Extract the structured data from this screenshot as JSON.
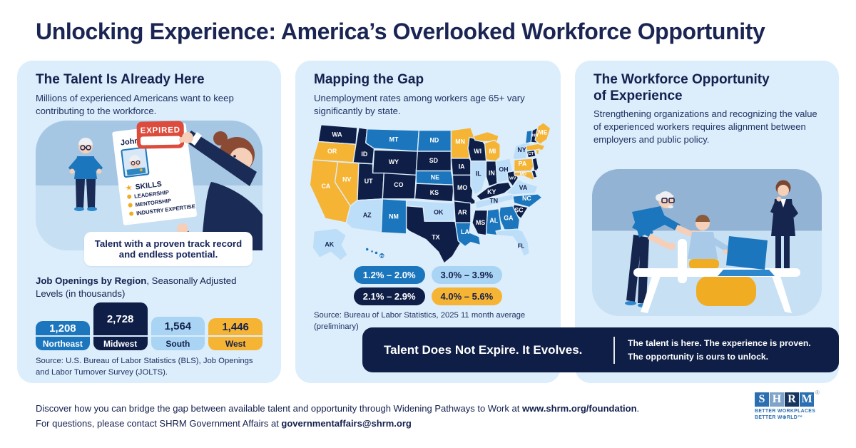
{
  "page": {
    "title": "Unlocking Experience: America’s Overlooked Workforce Opportunity"
  },
  "panels": {
    "talent": {
      "heading": "The Talent Is Already Here",
      "subheading": "Millions of experienced Americans want to keep contributing to the workforce.",
      "illustration": {
        "resume_name": "John",
        "stamp": "EXPIRED",
        "star": "★",
        "skills_title": "SKILLS",
        "skills": [
          "LEADERSHIP",
          "MENTORSHIP",
          "INDUSTRY EXPERTISE"
        ],
        "callout": "Talent with a proven track record and endless potential."
      },
      "chart_title_bold": "Job Openings by Region",
      "chart_title_rest": ", Seasonally Adjusted Levels (in thousands)",
      "source": "Source: U.S. Bureau of Labor Statistics (BLS), Job Openings and Labor Turnover Survey (JOLTS)."
    },
    "map": {
      "heading": "Mapping the Gap",
      "subheading": "Unemployment rates among workers age 65+ vary significantly by state.",
      "source": "Source: Bureau of Labor Statistics, 2025 11 month average (preliminary)"
    },
    "opportunity": {
      "heading_line1": "The Workforce Opportunity",
      "heading_line2": "of Experience",
      "subheading": "Strengthening organizations and recognizing the value of experienced workers requires alignment between employers and public policy."
    }
  },
  "banner": {
    "headline": "Talent Does Not Expire. It Evolves.",
    "sub_line1": "The talent is here. The experience is proven.",
    "sub_line2": "The opportunity is ours to unlock."
  },
  "footer": {
    "line1_prefix": "Discover how you can bridge the gap between available talent and opportunity through Widening Pathways to Work at ",
    "line1_bold": "www.shrm.org/foundation",
    "line1_suffix": ".",
    "line2_prefix": "For questions, please contact SHRM Government Affairs at ",
    "line2_bold": "governmentaffairs@shrm.org"
  },
  "logo": {
    "letters": [
      {
        "ch": "S",
        "bg": "#2B6FB0"
      },
      {
        "ch": "H",
        "bg": "#7FA3C9"
      },
      {
        "ch": "R",
        "bg": "#16365F"
      },
      {
        "ch": "M",
        "bg": "#2B6FB0"
      }
    ],
    "reg": "®",
    "tagline1": "BETTER WORKPLACES",
    "tagline2": "BETTER W⊕RLD™"
  },
  "colors": {
    "navy": "#0E1E46",
    "blue": "#1B76BD",
    "light_blue": "#A9D4F4",
    "pale_blue": "#BDDEF8",
    "orange": "#F6B434",
    "panel_bg": "#DCEDFB",
    "stamp_red": "#DC4B3C",
    "text_navy": "#14204E"
  },
  "chart_data": [
    {
      "type": "bar",
      "title": "Job Openings by Region, Seasonally Adjusted Levels (in thousands)",
      "categories": [
        "Northeast",
        "Midwest",
        "South",
        "West"
      ],
      "values": [
        1208,
        2728,
        1564,
        1446
      ],
      "value_labels": [
        "1,208",
        "2,728",
        "1,564",
        "1,446"
      ],
      "bar_colors": [
        "#1B76BD",
        "#0E1E46",
        "#A9D4F4",
        "#F6B434"
      ],
      "text_colors": [
        "#FFFFFF",
        "#FFFFFF",
        "#14204E",
        "#14204E"
      ],
      "ylim": [
        0,
        2728
      ],
      "source": "U.S. Bureau of Labor Statistics (BLS), Job Openings and Labor Turnover Survey (JOLTS)"
    },
    {
      "type": "heatmap",
      "title": "Unemployment rates among workers age 65+ by state",
      "legend_categories": [
        {
          "range": "1.2% – 2.0%",
          "color": "#1B76BD",
          "text_color": "#FFFFFF"
        },
        {
          "range": "2.1% – 2.9%",
          "color": "#0E1E46",
          "text_color": "#FFFFFF"
        },
        {
          "range": "3.0% – 3.9%",
          "color": "#A9D4F4",
          "text_color": "#14204E"
        },
        {
          "range": "4.0% – 5.6%",
          "color": "#F6B434",
          "text_color": "#14204E"
        }
      ],
      "legend_rows": [
        [
          0,
          2
        ],
        [
          1,
          3
        ]
      ],
      "map_colors": [
        "#1B76BD",
        "#0E1E46",
        "#BDDEF8",
        "#F6B434"
      ],
      "label_color_light": "#FFFFFF",
      "label_color_dark": "#14204E",
      "states": {
        "WA": 1,
        "OR": 3,
        "CA": 3,
        "NV": 3,
        "ID": 1,
        "MT": 0,
        "WY": 1,
        "UT": 1,
        "CO": 1,
        "AZ": 2,
        "NM": 0,
        "ND": 0,
        "SD": 1,
        "NE": 0,
        "KS": 1,
        "OK": 2,
        "TX": 1,
        "MN": 3,
        "IA": 1,
        "MO": 1,
        "AR": 1,
        "LA": 0,
        "WI": 1,
        "IL": 2,
        "MI": 3,
        "IN": 1,
        "OH": 2,
        "KY": 1,
        "TN": 2,
        "MS": 1,
        "AL": 0,
        "GA": 0,
        "FL": 2,
        "SC": 1,
        "NC": 0,
        "VA": 2,
        "WV": 1,
        "MD": 3,
        "DE": 1,
        "PA": 3,
        "NJ": 1,
        "NY": 2,
        "CT": 1,
        "RI": 3,
        "MA": 3,
        "VT": 0,
        "NH": 1,
        "ME": 3,
        "AK": 2,
        "HI": 0
      },
      "source": "Bureau of Labor Statistics, 2025 11 month average (preliminary)"
    }
  ]
}
